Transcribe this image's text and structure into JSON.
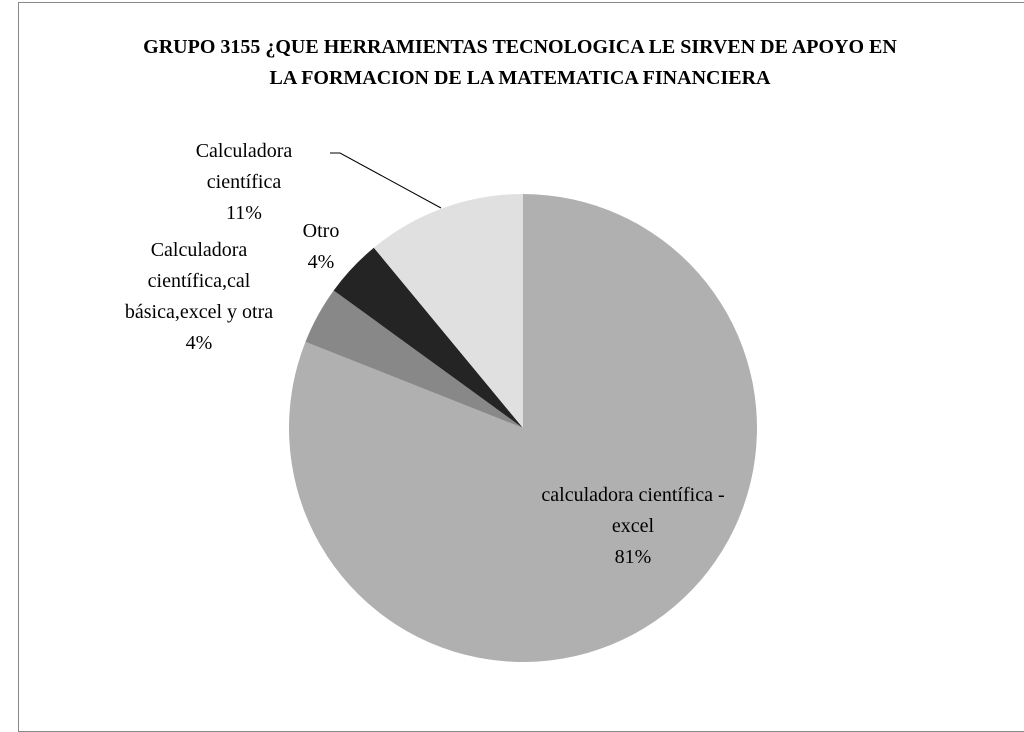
{
  "chart_data": {
    "type": "pie",
    "title": "GRUPO 3155  ¿QUE HERRAMIENTAS TECNOLOGICA LE SIRVEN DE  APOYO  EN LA FORMACION DE LA MATEMATICA FINANCIERA",
    "categories": [
      "calculadora científica - excel",
      "Calculadora científica,cal básica,excel y otra",
      "Otro",
      "Calculadora científica"
    ],
    "values": [
      81,
      4,
      4,
      11
    ],
    "value_labels": [
      "81%",
      "4%",
      "4%",
      "11%"
    ],
    "colors": [
      "#b0b0b0",
      "#888888",
      "#242424",
      "#e0e0e0"
    ]
  }
}
